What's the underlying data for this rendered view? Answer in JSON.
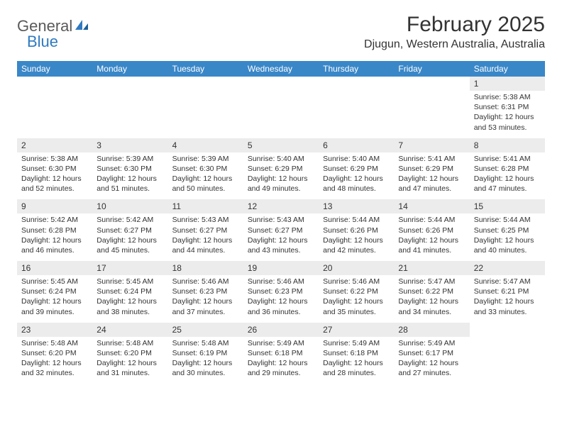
{
  "logo": {
    "part1": "General",
    "part2": "Blue"
  },
  "title": "February 2025",
  "location": "Djugun, Western Australia, Australia",
  "colors": {
    "header_bg": "#3a87c8",
    "header_fg": "#ffffff",
    "daynum_bg": "#ececec",
    "rule": "#c8c8c8"
  },
  "day_labels": [
    "Sunday",
    "Monday",
    "Tuesday",
    "Wednesday",
    "Thursday",
    "Friday",
    "Saturday"
  ],
  "weeks": [
    [
      {
        "n": "",
        "sunrise": "",
        "sunset": "",
        "daylight": ""
      },
      {
        "n": "",
        "sunrise": "",
        "sunset": "",
        "daylight": ""
      },
      {
        "n": "",
        "sunrise": "",
        "sunset": "",
        "daylight": ""
      },
      {
        "n": "",
        "sunrise": "",
        "sunset": "",
        "daylight": ""
      },
      {
        "n": "",
        "sunrise": "",
        "sunset": "",
        "daylight": ""
      },
      {
        "n": "",
        "sunrise": "",
        "sunset": "",
        "daylight": ""
      },
      {
        "n": "1",
        "sunrise": "Sunrise: 5:38 AM",
        "sunset": "Sunset: 6:31 PM",
        "daylight": "Daylight: 12 hours and 53 minutes."
      }
    ],
    [
      {
        "n": "2",
        "sunrise": "Sunrise: 5:38 AM",
        "sunset": "Sunset: 6:30 PM",
        "daylight": "Daylight: 12 hours and 52 minutes."
      },
      {
        "n": "3",
        "sunrise": "Sunrise: 5:39 AM",
        "sunset": "Sunset: 6:30 PM",
        "daylight": "Daylight: 12 hours and 51 minutes."
      },
      {
        "n": "4",
        "sunrise": "Sunrise: 5:39 AM",
        "sunset": "Sunset: 6:30 PM",
        "daylight": "Daylight: 12 hours and 50 minutes."
      },
      {
        "n": "5",
        "sunrise": "Sunrise: 5:40 AM",
        "sunset": "Sunset: 6:29 PM",
        "daylight": "Daylight: 12 hours and 49 minutes."
      },
      {
        "n": "6",
        "sunrise": "Sunrise: 5:40 AM",
        "sunset": "Sunset: 6:29 PM",
        "daylight": "Daylight: 12 hours and 48 minutes."
      },
      {
        "n": "7",
        "sunrise": "Sunrise: 5:41 AM",
        "sunset": "Sunset: 6:29 PM",
        "daylight": "Daylight: 12 hours and 47 minutes."
      },
      {
        "n": "8",
        "sunrise": "Sunrise: 5:41 AM",
        "sunset": "Sunset: 6:28 PM",
        "daylight": "Daylight: 12 hours and 47 minutes."
      }
    ],
    [
      {
        "n": "9",
        "sunrise": "Sunrise: 5:42 AM",
        "sunset": "Sunset: 6:28 PM",
        "daylight": "Daylight: 12 hours and 46 minutes."
      },
      {
        "n": "10",
        "sunrise": "Sunrise: 5:42 AM",
        "sunset": "Sunset: 6:27 PM",
        "daylight": "Daylight: 12 hours and 45 minutes."
      },
      {
        "n": "11",
        "sunrise": "Sunrise: 5:43 AM",
        "sunset": "Sunset: 6:27 PM",
        "daylight": "Daylight: 12 hours and 44 minutes."
      },
      {
        "n": "12",
        "sunrise": "Sunrise: 5:43 AM",
        "sunset": "Sunset: 6:27 PM",
        "daylight": "Daylight: 12 hours and 43 minutes."
      },
      {
        "n": "13",
        "sunrise": "Sunrise: 5:44 AM",
        "sunset": "Sunset: 6:26 PM",
        "daylight": "Daylight: 12 hours and 42 minutes."
      },
      {
        "n": "14",
        "sunrise": "Sunrise: 5:44 AM",
        "sunset": "Sunset: 6:26 PM",
        "daylight": "Daylight: 12 hours and 41 minutes."
      },
      {
        "n": "15",
        "sunrise": "Sunrise: 5:44 AM",
        "sunset": "Sunset: 6:25 PM",
        "daylight": "Daylight: 12 hours and 40 minutes."
      }
    ],
    [
      {
        "n": "16",
        "sunrise": "Sunrise: 5:45 AM",
        "sunset": "Sunset: 6:24 PM",
        "daylight": "Daylight: 12 hours and 39 minutes."
      },
      {
        "n": "17",
        "sunrise": "Sunrise: 5:45 AM",
        "sunset": "Sunset: 6:24 PM",
        "daylight": "Daylight: 12 hours and 38 minutes."
      },
      {
        "n": "18",
        "sunrise": "Sunrise: 5:46 AM",
        "sunset": "Sunset: 6:23 PM",
        "daylight": "Daylight: 12 hours and 37 minutes."
      },
      {
        "n": "19",
        "sunrise": "Sunrise: 5:46 AM",
        "sunset": "Sunset: 6:23 PM",
        "daylight": "Daylight: 12 hours and 36 minutes."
      },
      {
        "n": "20",
        "sunrise": "Sunrise: 5:46 AM",
        "sunset": "Sunset: 6:22 PM",
        "daylight": "Daylight: 12 hours and 35 minutes."
      },
      {
        "n": "21",
        "sunrise": "Sunrise: 5:47 AM",
        "sunset": "Sunset: 6:22 PM",
        "daylight": "Daylight: 12 hours and 34 minutes."
      },
      {
        "n": "22",
        "sunrise": "Sunrise: 5:47 AM",
        "sunset": "Sunset: 6:21 PM",
        "daylight": "Daylight: 12 hours and 33 minutes."
      }
    ],
    [
      {
        "n": "23",
        "sunrise": "Sunrise: 5:48 AM",
        "sunset": "Sunset: 6:20 PM",
        "daylight": "Daylight: 12 hours and 32 minutes."
      },
      {
        "n": "24",
        "sunrise": "Sunrise: 5:48 AM",
        "sunset": "Sunset: 6:20 PM",
        "daylight": "Daylight: 12 hours and 31 minutes."
      },
      {
        "n": "25",
        "sunrise": "Sunrise: 5:48 AM",
        "sunset": "Sunset: 6:19 PM",
        "daylight": "Daylight: 12 hours and 30 minutes."
      },
      {
        "n": "26",
        "sunrise": "Sunrise: 5:49 AM",
        "sunset": "Sunset: 6:18 PM",
        "daylight": "Daylight: 12 hours and 29 minutes."
      },
      {
        "n": "27",
        "sunrise": "Sunrise: 5:49 AM",
        "sunset": "Sunset: 6:18 PM",
        "daylight": "Daylight: 12 hours and 28 minutes."
      },
      {
        "n": "28",
        "sunrise": "Sunrise: 5:49 AM",
        "sunset": "Sunset: 6:17 PM",
        "daylight": "Daylight: 12 hours and 27 minutes."
      },
      {
        "n": "",
        "sunrise": "",
        "sunset": "",
        "daylight": ""
      }
    ]
  ]
}
